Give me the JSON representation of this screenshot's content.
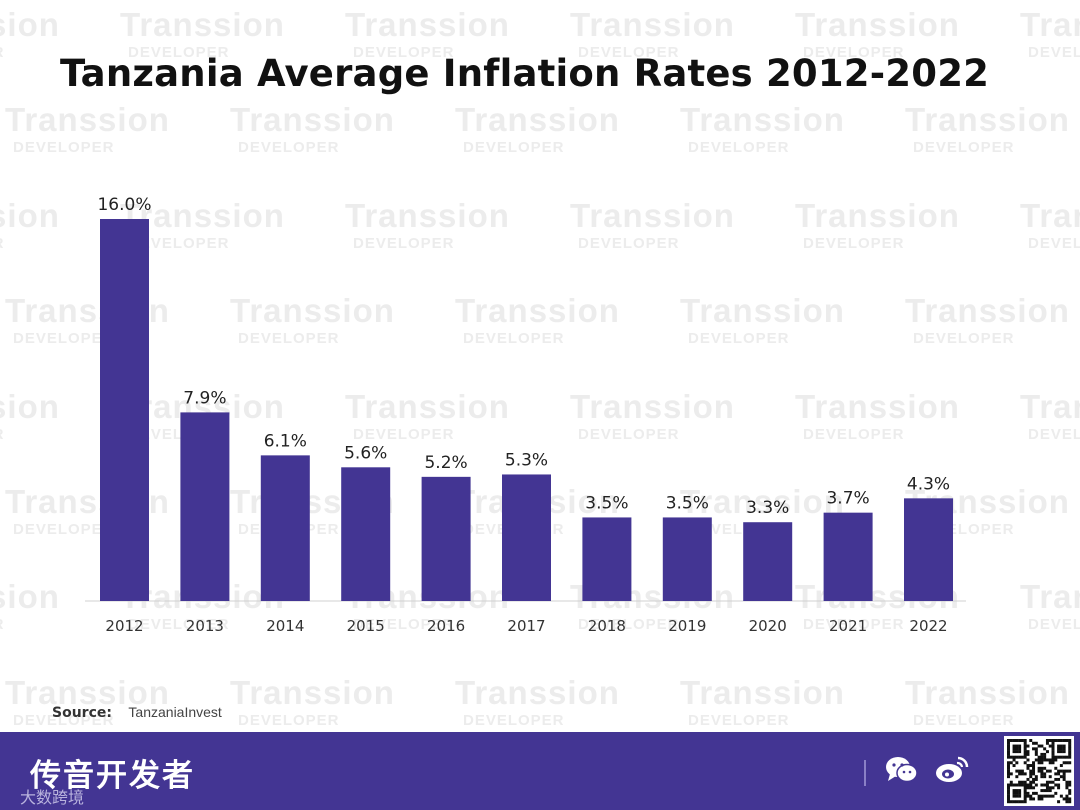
{
  "title": "Tanzania Average Inflation Rates 2012-2022",
  "watermark": {
    "brand": "Transsion",
    "sub": "DEVELOPER"
  },
  "source": {
    "label": "Source:",
    "value": "TanzaniaInvest"
  },
  "footer": {
    "brand": "传音开发者",
    "sub": "大数跨境",
    "background": "#433593",
    "icons": [
      "wechat-icon",
      "weibo-icon",
      "qr-code"
    ]
  },
  "chart_data": {
    "type": "bar",
    "title": "Tanzania Average Inflation Rates 2012-2022",
    "categories": [
      "2012",
      "2013",
      "2014",
      "2015",
      "2016",
      "2017",
      "2018",
      "2019",
      "2020",
      "2021",
      "2022"
    ],
    "values": [
      16.0,
      7.9,
      6.1,
      5.6,
      5.2,
      5.3,
      3.5,
      3.5,
      3.3,
      3.7,
      4.3
    ],
    "labels": [
      "16.0%",
      "7.9%",
      "6.1%",
      "5.6%",
      "5.2%",
      "5.3%",
      "3.5%",
      "3.5%",
      "3.3%",
      "3.7%",
      "4.3%"
    ],
    "xlabel": "",
    "ylabel": "",
    "ylim": [
      0,
      16
    ],
    "grid": false,
    "legend": "none",
    "bar_color": "#433593",
    "label_color": "#222222",
    "tick_color": "#333333"
  }
}
